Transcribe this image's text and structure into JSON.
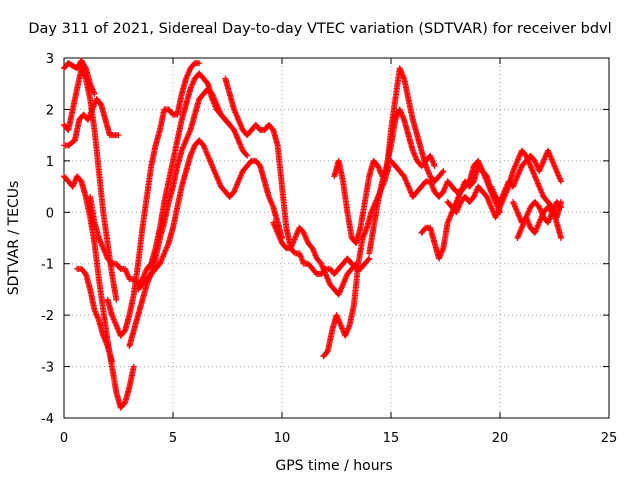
{
  "chart_data": {
    "type": "scatter",
    "title": "Day 311 of 2021, Sidereal Day-to-day VTEC variation (SDTVAR) for receiver bdvl",
    "xlabel": "GPS time / hours",
    "ylabel": "SDTVAR / TECUs",
    "xlim": [
      0,
      25
    ],
    "ylim": [
      -4,
      3
    ],
    "xticks": [
      "0",
      "5",
      "10",
      "15",
      "20",
      "25"
    ],
    "yticks": [
      "-4",
      "-3",
      "-2",
      "-1",
      "0",
      "1",
      "2",
      "3"
    ],
    "grid": true,
    "marker": "plus",
    "color": "#ff0000",
    "series": [
      {
        "x": [
          0.0,
          0.2,
          0.4,
          0.6,
          0.8,
          1.0,
          1.2,
          1.4
        ],
        "y": [
          2.8,
          2.9,
          2.85,
          2.8,
          2.95,
          2.8,
          2.5,
          2.3
        ]
      },
      {
        "x": [
          0.0,
          0.2,
          0.5,
          0.7,
          0.9,
          1.1,
          1.3,
          1.5,
          1.7,
          1.9,
          2.1,
          2.3,
          2.5
        ],
        "y": [
          1.3,
          1.3,
          1.4,
          1.8,
          1.9,
          1.8,
          2.0,
          2.2,
          2.1,
          1.8,
          1.5,
          1.5,
          1.5
        ]
      },
      {
        "x": [
          0.0,
          0.2,
          0.4,
          0.6,
          0.8,
          1.0,
          1.2,
          1.4,
          1.6,
          1.8,
          2.0,
          2.2,
          2.4,
          2.6,
          2.8,
          3.0,
          3.2
        ],
        "y": [
          0.7,
          0.6,
          0.5,
          0.7,
          0.6,
          0.3,
          -0.1,
          -0.6,
          -1.3,
          -1.9,
          -2.5,
          -3.0,
          -3.5,
          -3.8,
          -3.7,
          -3.4,
          -3.0
        ]
      },
      {
        "x": [
          0.0,
          0.2,
          0.4,
          0.6,
          0.8,
          1.0,
          1.2,
          1.4,
          1.6,
          1.8,
          2.0,
          2.2,
          2.4
        ],
        "y": [
          1.7,
          1.6,
          2.0,
          2.4,
          2.8,
          2.6,
          2.2,
          1.6,
          0.8,
          0.0,
          -0.6,
          -1.2,
          -1.7
        ]
      },
      {
        "x": [
          0.6,
          0.8,
          1.0,
          1.2,
          1.4,
          1.6,
          1.8,
          2.0,
          2.2
        ],
        "y": [
          -1.1,
          -1.1,
          -1.2,
          -1.5,
          -1.9,
          -2.1,
          -2.4,
          -2.6,
          -2.9
        ]
      },
      {
        "x": [
          2.0,
          2.2,
          2.4,
          2.6,
          2.8,
          3.0,
          3.2,
          3.4,
          3.6,
          3.8,
          4.0,
          4.2,
          4.4,
          4.6,
          4.8,
          5.0,
          5.2,
          5.4,
          5.6,
          5.8,
          6.0,
          6.2
        ],
        "y": [
          -1.7,
          -2.0,
          -2.2,
          -2.4,
          -2.3,
          -2.0,
          -1.6,
          -1.0,
          -0.3,
          0.3,
          0.9,
          1.3,
          1.6,
          2.0,
          2.0,
          1.9,
          1.9,
          2.3,
          2.6,
          2.8,
          2.9,
          2.9
        ]
      },
      {
        "x": [
          1.2,
          1.4,
          1.6,
          1.8,
          2.0,
          2.2,
          2.4,
          2.6,
          2.8,
          3.0,
          3.2,
          3.4,
          3.6,
          3.8,
          4.0,
          4.2,
          4.4,
          4.6,
          4.8,
          5.0,
          5.2,
          5.4,
          5.6,
          5.8,
          6.0,
          6.2,
          6.4,
          6.6,
          6.8,
          7.0,
          7.2,
          7.4,
          7.6
        ],
        "y": [
          0.3,
          -0.2,
          -0.5,
          -0.7,
          -0.9,
          -1.0,
          -1.0,
          -1.1,
          -1.1,
          -1.3,
          -1.3,
          -1.4,
          -1.3,
          -1.1,
          -1.0,
          -0.7,
          -0.3,
          0.2,
          0.6,
          1.0,
          1.4,
          1.8,
          2.1,
          2.4,
          2.6,
          2.7,
          2.6,
          2.5,
          2.2,
          2.0,
          1.9,
          1.8,
          1.7
        ]
      },
      {
        "x": [
          3.0,
          3.2,
          3.4,
          3.6,
          3.8,
          4.0,
          4.2,
          4.4,
          4.6,
          4.8,
          5.0,
          5.2,
          5.4,
          5.6,
          5.8,
          6.0,
          6.2,
          6.4,
          6.6,
          6.8,
          7.0,
          7.2,
          7.4,
          7.6,
          7.8,
          8.0,
          8.2,
          8.4
        ],
        "y": [
          -2.6,
          -2.3,
          -2.0,
          -1.7,
          -1.4,
          -1.2,
          -0.9,
          -0.5,
          -0.2,
          0.2,
          0.5,
          0.9,
          1.2,
          1.4,
          1.6,
          1.9,
          2.2,
          2.3,
          2.4,
          2.3,
          2.1,
          1.9,
          1.8,
          1.7,
          1.6,
          1.4,
          1.2,
          1.1
        ]
      },
      {
        "x": [
          3.4,
          3.6,
          3.8,
          4.0,
          4.2,
          4.4,
          4.6,
          4.8,
          5.0,
          5.2,
          5.4,
          5.6,
          5.8,
          6.0,
          6.2,
          6.4,
          6.6,
          6.8,
          7.0,
          7.2,
          7.4,
          7.6,
          7.8,
          8.0,
          8.2,
          8.4,
          8.6,
          8.8,
          9.0,
          9.2,
          9.4,
          9.6,
          9.8,
          10.0
        ],
        "y": [
          -1.5,
          -1.4,
          -1.3,
          -1.2,
          -1.1,
          -1.0,
          -0.8,
          -0.6,
          -0.3,
          0.1,
          0.5,
          0.8,
          1.1,
          1.3,
          1.4,
          1.3,
          1.1,
          0.9,
          0.7,
          0.5,
          0.4,
          0.3,
          0.4,
          0.6,
          0.8,
          0.9,
          1.0,
          1.0,
          0.9,
          0.6,
          0.3,
          0.1,
          -0.2,
          -0.5
        ]
      },
      {
        "x": [
          7.4,
          7.6,
          7.8,
          8.0,
          8.2,
          8.4,
          8.6,
          8.8,
          9.0,
          9.2,
          9.4,
          9.6,
          9.8,
          10.0,
          10.2,
          10.4,
          10.6,
          10.8,
          11.0,
          11.2,
          11.4,
          11.6,
          11.8,
          12.0,
          12.2,
          12.4,
          12.6,
          12.8,
          13.0,
          13.2,
          13.4,
          13.6,
          13.8,
          14.0
        ],
        "y": [
          2.6,
          2.3,
          2.0,
          1.8,
          1.6,
          1.5,
          1.6,
          1.7,
          1.6,
          1.6,
          1.7,
          1.6,
          1.3,
          0.5,
          -0.3,
          -0.7,
          -0.8,
          -0.8,
          -1.0,
          -1.0,
          -1.1,
          -1.2,
          -1.2,
          -1.1,
          -1.1,
          -1.2,
          -1.1,
          -1.0,
          -0.9,
          -1.0,
          -1.1,
          -1.1,
          -1.0,
          -0.9
        ]
      },
      {
        "x": [
          9.6,
          9.8,
          10.0,
          10.2,
          10.4,
          10.6,
          10.8,
          11.0,
          11.2,
          11.4,
          11.6,
          11.8,
          12.0,
          12.2,
          12.4,
          12.6,
          12.8,
          13.0,
          13.2,
          13.4
        ],
        "y": [
          -0.2,
          -0.4,
          -0.6,
          -0.7,
          -0.7,
          -0.5,
          -0.3,
          -0.4,
          -0.6,
          -0.7,
          -0.9,
          -1.0,
          -1.2,
          -1.4,
          -1.5,
          -1.6,
          -1.4,
          -1.2,
          -1.1,
          -1.0
        ]
      },
      {
        "x": [
          11.9,
          12.1,
          12.3,
          12.5,
          12.7,
          12.9,
          13.1,
          13.3,
          13.5,
          13.7,
          13.9,
          14.1,
          14.3,
          14.5,
          14.7,
          14.9
        ],
        "y": [
          -2.8,
          -2.7,
          -2.3,
          -2.0,
          -2.2,
          -2.4,
          -2.2,
          -1.8,
          -1.0,
          -0.5,
          -0.3,
          0.0,
          0.2,
          0.4,
          0.6,
          0.9
        ]
      },
      {
        "x": [
          12.4,
          12.6,
          12.8,
          13.0,
          13.2,
          13.4,
          13.6,
          13.8,
          14.0,
          14.2,
          14.4,
          14.6,
          14.8,
          15.0,
          15.2,
          15.4,
          15.6,
          15.8,
          16.0,
          16.2,
          16.4,
          16.6,
          16.8,
          17.0,
          17.2,
          17.4
        ],
        "y": [
          0.7,
          1.0,
          0.6,
          0.0,
          -0.5,
          -0.6,
          -0.3,
          0.2,
          0.7,
          1.0,
          0.9,
          0.7,
          0.8,
          1.6,
          2.2,
          2.8,
          2.6,
          2.2,
          1.8,
          1.5,
          1.2,
          0.9,
          0.7,
          0.6,
          0.7,
          0.8
        ]
      },
      {
        "x": [
          14.0,
          14.2,
          14.4,
          14.6,
          14.8,
          15.0,
          15.2,
          15.4,
          15.6,
          15.8,
          16.0,
          16.2,
          16.4,
          16.6,
          16.8,
          17.0
        ],
        "y": [
          -0.8,
          -0.3,
          0.2,
          0.6,
          0.9,
          1.3,
          1.8,
          2.0,
          1.8,
          1.5,
          1.2,
          1.0,
          0.9,
          1.0,
          1.1,
          0.9
        ]
      },
      {
        "x": [
          15.0,
          15.2,
          15.4,
          15.6,
          15.8,
          16.0,
          16.2,
          16.4,
          16.6,
          16.8,
          17.0,
          17.2,
          17.4,
          17.6,
          17.8,
          18.0,
          18.2,
          18.4,
          18.6,
          18.8,
          19.0,
          19.2,
          19.4,
          19.6,
          19.8,
          20.0
        ],
        "y": [
          1.0,
          0.9,
          0.8,
          0.7,
          0.5,
          0.3,
          0.4,
          0.5,
          0.6,
          0.6,
          0.4,
          0.3,
          0.4,
          0.6,
          0.5,
          0.4,
          0.4,
          0.5,
          0.6,
          0.9,
          1.0,
          0.8,
          0.6,
          0.4,
          0.2,
          0.0
        ]
      },
      {
        "x": [
          16.4,
          16.6,
          16.8,
          17.0,
          17.2,
          17.4,
          17.6,
          17.8,
          18.0,
          18.2,
          18.4,
          18.6,
          18.8,
          19.0,
          19.2,
          19.4,
          19.6,
          19.8
        ],
        "y": [
          -0.4,
          -0.3,
          -0.3,
          -0.6,
          -0.9,
          -0.7,
          -0.2,
          0.0,
          0.2,
          0.4,
          0.6,
          0.5,
          0.6,
          0.9,
          0.8,
          0.7,
          0.4,
          0.2
        ]
      },
      {
        "x": [
          17.6,
          17.8,
          18.0,
          18.2,
          18.4,
          18.6,
          18.8,
          19.0,
          19.2,
          19.4,
          19.6,
          19.8,
          20.0,
          20.2,
          20.4,
          20.6,
          20.8,
          21.0,
          21.2,
          21.4,
          21.6,
          21.8,
          22.0,
          22.2,
          22.4,
          22.6,
          22.8
        ],
        "y": [
          0.2,
          0.1,
          0.0,
          0.2,
          0.3,
          0.2,
          0.3,
          0.5,
          0.4,
          0.3,
          0.1,
          -0.1,
          0.1,
          0.3,
          0.5,
          0.8,
          1.0,
          1.2,
          1.1,
          0.9,
          0.7,
          0.5,
          0.3,
          0.2,
          0.1,
          -0.2,
          -0.5
        ]
      },
      {
        "x": [
          19.6,
          19.8,
          20.0,
          20.2,
          20.4,
          20.6,
          20.8,
          21.0,
          21.2,
          21.4,
          21.6,
          21.8,
          22.0,
          22.2,
          22.4,
          22.6,
          22.8
        ],
        "y": [
          0.5,
          0.3,
          0.2,
          0.4,
          0.6,
          0.5,
          0.7,
          0.9,
          1.0,
          1.1,
          1.0,
          0.8,
          1.0,
          1.2,
          1.0,
          0.8,
          0.6
        ]
      },
      {
        "x": [
          20.8,
          21.0,
          21.2,
          21.4,
          21.6,
          21.8,
          22.0,
          22.2,
          22.4,
          22.6,
          22.8
        ],
        "y": [
          -0.5,
          -0.3,
          -0.1,
          -0.3,
          -0.4,
          -0.2,
          0.0,
          0.1,
          0.0,
          -0.1,
          0.2
        ]
      },
      {
        "x": [
          20.6,
          20.8,
          21.0,
          21.2,
          21.4,
          21.6,
          21.8,
          22.0,
          22.2,
          22.4,
          22.6,
          22.8
        ],
        "y": [
          0.2,
          0.0,
          -0.2,
          -0.1,
          0.1,
          0.2,
          0.1,
          -0.1,
          -0.2,
          0.0,
          0.2,
          0.1
        ]
      }
    ]
  }
}
